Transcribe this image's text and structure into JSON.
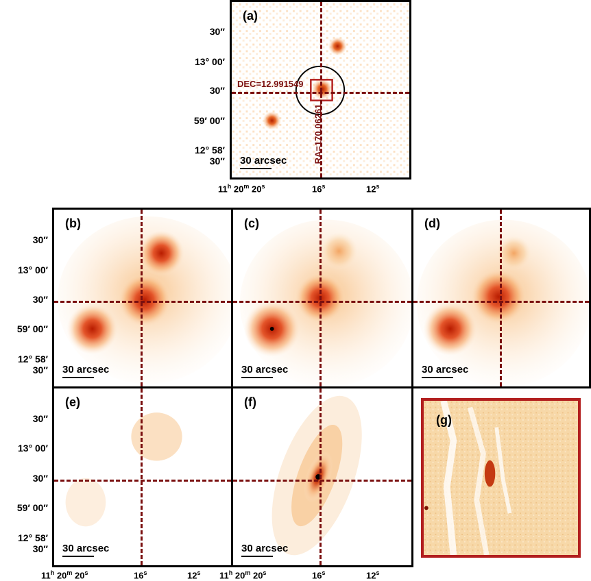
{
  "panels": {
    "a": {
      "label": "(a)",
      "scalebar": "30 arcsec",
      "dec_annotation": "DEC=12.991549",
      "ra_annotation": "RA=170.06261"
    },
    "b": {
      "label": "(b)",
      "scalebar": "30 arcsec"
    },
    "c": {
      "label": "(c)",
      "scalebar": "30 arcsec"
    },
    "d": {
      "label": "(d)",
      "scalebar": "30 arcsec"
    },
    "e": {
      "label": "(e)",
      "scalebar": "30 arcsec"
    },
    "f": {
      "label": "(f)",
      "scalebar": "30 arcsec"
    },
    "g": {
      "label": "(g)"
    }
  },
  "y_ticks": [
    "30″",
    "13° 00′",
    "30″",
    "59′ 00″",
    "12° 58′ 30″"
  ],
  "x_ticks": {
    "h": "h",
    "m": "m",
    "s": "s",
    "first": "11",
    "min": "20",
    "sec20": "20",
    "sec16": "16",
    "sec12": "12"
  },
  "colors": {
    "dash": "#7a0f0f",
    "frame": "#000000",
    "g_frame": "#b21e1e",
    "heat_hot": "#8b0000",
    "heat_mid": "#e8541c",
    "heat_low": "#fbe3c0"
  }
}
